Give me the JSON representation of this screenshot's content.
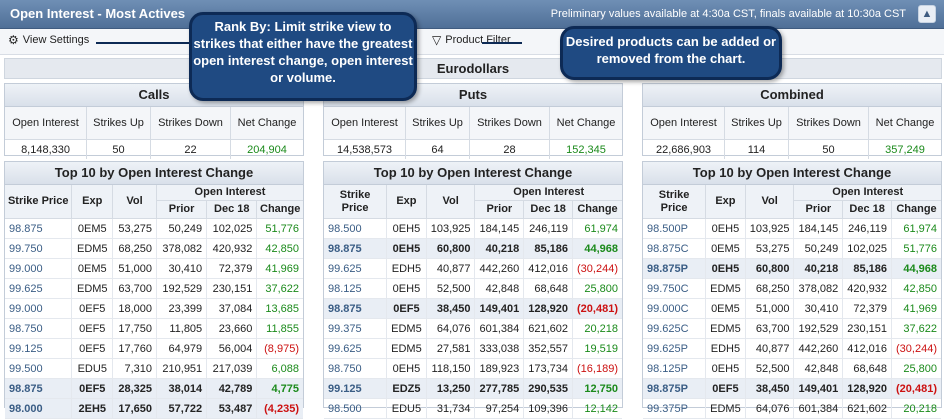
{
  "titlebar": {
    "title": "Open Interest - Most Actives",
    "note": "Preliminary values available at 4:30a CST, finals available at 10:30a CST",
    "control_icon": "chevron-up-icon"
  },
  "toolbar": {
    "view_settings": "View Settings",
    "product_filter": "Product Filter"
  },
  "product": "Eurodollars",
  "callouts": {
    "rank_by": "Rank By: Limit strike view to strikes that either have the greatest open interest change, open interest or volume.",
    "products": "Desired products can be added or removed from the chart."
  },
  "colors": {
    "positive": "#1b8a1b",
    "negative": "#cc1111",
    "header": "#4f6f97",
    "callout": "#1f4a82"
  },
  "summary_columns": [
    "Open Interest",
    "Strikes Up",
    "Strikes Down",
    "Net Change"
  ],
  "summaries": [
    {
      "title": "Calls",
      "values": [
        "8,148,330",
        "50",
        "22",
        "204,904"
      ]
    },
    {
      "title": "Puts",
      "values": [
        "14,538,573",
        "64",
        "28",
        "152,345"
      ]
    },
    {
      "title": "Combined",
      "values": [
        "22,686,903",
        "114",
        "50",
        "357,249"
      ]
    }
  ],
  "top10": {
    "title": "Top 10 by Open Interest Change",
    "headers": {
      "strike": "Strike Price",
      "exp": "Exp",
      "vol": "Vol",
      "oi": "Open Interest",
      "prior": "Prior",
      "current": "Dec 18",
      "change": "Change"
    }
  },
  "tables": [
    {
      "rows": [
        [
          "98.875",
          "0EM5",
          "53,275",
          "50,249",
          "102,025",
          "51,776"
        ],
        [
          "99.750",
          "EDM5",
          "68,250",
          "378,082",
          "420,932",
          "42,850"
        ],
        [
          "99.000",
          "0EM5",
          "51,000",
          "30,410",
          "72,379",
          "41,969"
        ],
        [
          "99.625",
          "EDM5",
          "63,700",
          "192,529",
          "230,151",
          "37,622"
        ],
        [
          "99.000",
          "0EF5",
          "18,000",
          "23,399",
          "37,084",
          "13,685"
        ],
        [
          "98.750",
          "0EF5",
          "17,750",
          "11,805",
          "23,660",
          "11,855"
        ],
        [
          "99.125",
          "0EF5",
          "17,760",
          "64,979",
          "56,004",
          "(8,975)"
        ],
        [
          "99.500",
          "EDU5",
          "7,310",
          "210,951",
          "217,039",
          "6,088"
        ],
        [
          "98.875",
          "0EF5",
          "28,325",
          "38,014",
          "42,789",
          "4,775"
        ],
        [
          "98.000",
          "2EH5",
          "17,650",
          "57,722",
          "53,487",
          "(4,235)"
        ]
      ],
      "bold_rows": [
        8,
        9
      ]
    },
    {
      "rows": [
        [
          "98.500",
          "0EH5",
          "103,925",
          "184,145",
          "246,119",
          "61,974"
        ],
        [
          "98.875",
          "0EH5",
          "60,800",
          "40,218",
          "85,186",
          "44,968"
        ],
        [
          "99.625",
          "EDH5",
          "40,877",
          "442,260",
          "412,016",
          "(30,244)"
        ],
        [
          "98.125",
          "0EH5",
          "52,500",
          "42,848",
          "68,648",
          "25,800"
        ],
        [
          "98.875",
          "0EF5",
          "38,450",
          "149,401",
          "128,920",
          "(20,481)"
        ],
        [
          "99.375",
          "EDM5",
          "64,076",
          "601,384",
          "621,602",
          "20,218"
        ],
        [
          "99.625",
          "EDM5",
          "27,581",
          "333,038",
          "352,557",
          "19,519"
        ],
        [
          "98.750",
          "0EH5",
          "118,150",
          "189,923",
          "173,734",
          "(16,189)"
        ],
        [
          "99.125",
          "EDZ5",
          "13,250",
          "277,785",
          "290,535",
          "12,750"
        ],
        [
          "98.500",
          "EDU5",
          "31,734",
          "97,254",
          "109,396",
          "12,142"
        ]
      ],
      "bold_rows": [
        1,
        4,
        8
      ]
    },
    {
      "rows": [
        [
          "98.500P",
          "0EH5",
          "103,925",
          "184,145",
          "246,119",
          "61,974"
        ],
        [
          "98.875C",
          "0EM5",
          "53,275",
          "50,249",
          "102,025",
          "51,776"
        ],
        [
          "98.875P",
          "0EH5",
          "60,800",
          "40,218",
          "85,186",
          "44,968"
        ],
        [
          "99.750C",
          "EDM5",
          "68,250",
          "378,082",
          "420,932",
          "42,850"
        ],
        [
          "99.000C",
          "0EM5",
          "51,000",
          "30,410",
          "72,379",
          "41,969"
        ],
        [
          "99.625C",
          "EDM5",
          "63,700",
          "192,529",
          "230,151",
          "37,622"
        ],
        [
          "99.625P",
          "EDH5",
          "40,877",
          "442,260",
          "412,016",
          "(30,244)"
        ],
        [
          "98.125P",
          "0EH5",
          "52,500",
          "42,848",
          "68,648",
          "25,800"
        ],
        [
          "98.875P",
          "0EF5",
          "38,450",
          "149,401",
          "128,920",
          "(20,481)"
        ],
        [
          "99.375P",
          "EDM5",
          "64,076",
          "601,384",
          "621,602",
          "20,218"
        ]
      ],
      "bold_rows": [
        2,
        8
      ]
    }
  ]
}
